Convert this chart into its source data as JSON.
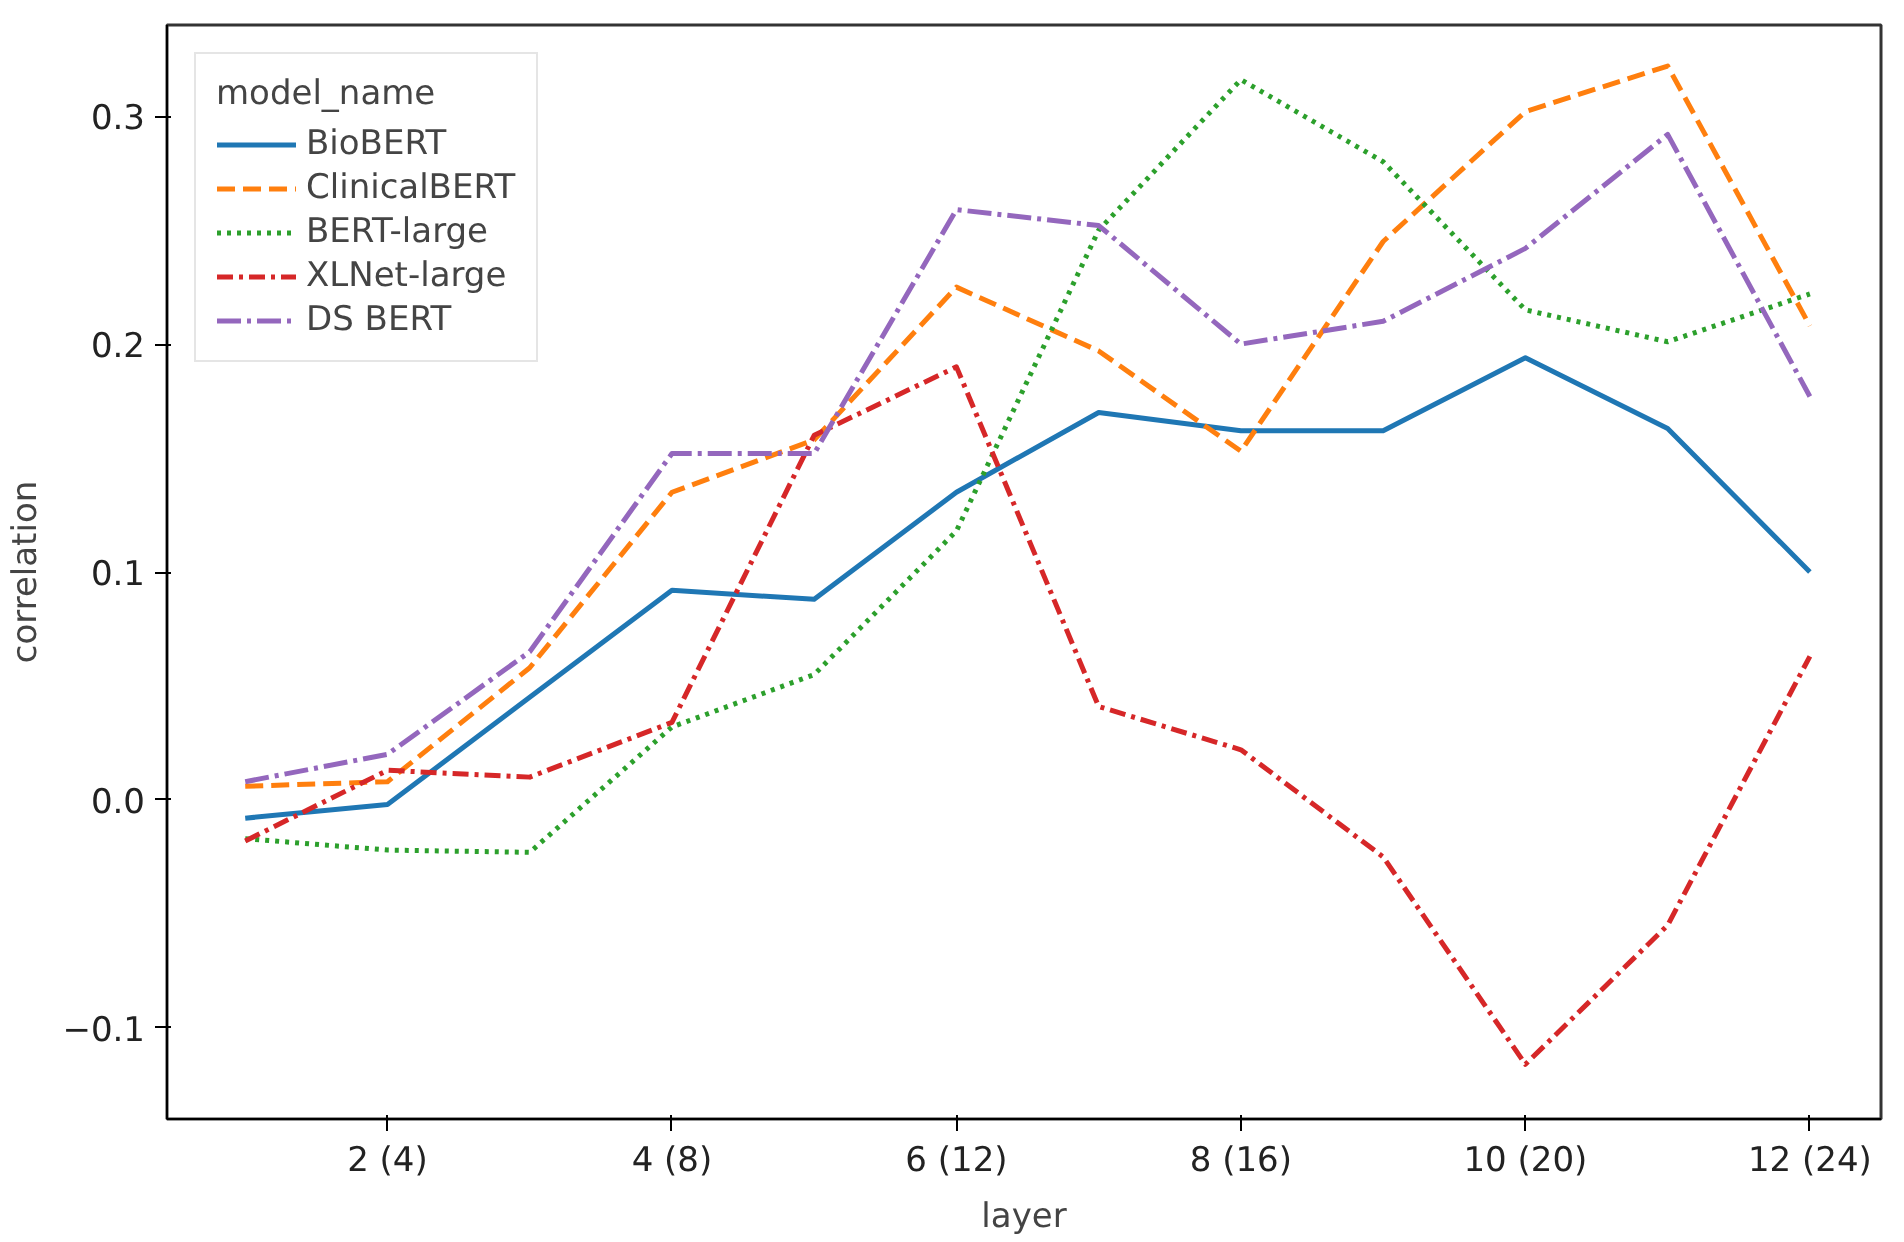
{
  "chart_data": {
    "type": "line",
    "xlabel": "layer",
    "ylabel": "correlation",
    "legend_title": "model_name",
    "legend": "top left",
    "grid": false,
    "categories": [
      null,
      "2 (4)",
      null,
      "4 (8)",
      null,
      "6 (12)",
      null,
      "8 (16)",
      null,
      "10 (20)",
      null,
      "12 (24)"
    ],
    "ylim": [
      -0.14,
      0.34
    ],
    "yticks": [
      {
        "value": -0.1,
        "label": "−0.1"
      },
      {
        "value": 0,
        "label": "0.0"
      },
      0.1,
      0.2,
      0.3
    ],
    "series": [
      {
        "name": "BioBERT",
        "color": "#1f77b4",
        "line_style": "solid",
        "values": [
          -0.008,
          -0.002,
          0.045,
          0.092,
          0.088,
          0.135,
          0.17,
          0.162,
          0.162,
          0.194,
          0.163,
          0.1
        ]
      },
      {
        "name": "ClinicalBERT",
        "color": "#ff7f0e",
        "line_style": "dashed",
        "values": [
          0.006,
          0.008,
          0.058,
          0.135,
          0.158,
          0.225,
          0.197,
          0.153,
          0.245,
          0.302,
          0.322,
          0.208
        ]
      },
      {
        "name": "BERT-large",
        "color": "#2ca02c",
        "line_style": "dotted",
        "values": [
          -0.017,
          -0.022,
          -0.023,
          0.032,
          0.055,
          0.118,
          0.25,
          0.316,
          0.28,
          0.215,
          0.201,
          0.222
        ]
      },
      {
        "name": "XLNet-large",
        "color": "#d62728",
        "line_style": "dashdot",
        "values": [
          -0.018,
          0.013,
          0.01,
          0.034,
          0.16,
          0.19,
          0.041,
          0.022,
          -0.025,
          -0.116,
          -0.055,
          0.063
        ]
      },
      {
        "name": "DS BERT",
        "color": "#9467bd",
        "line_style": "dashdotlong",
        "values": [
          0.008,
          0.02,
          0.065,
          0.152,
          0.152,
          0.259,
          0.252,
          0.2,
          0.21,
          0.242,
          0.292,
          0.177
        ]
      }
    ]
  }
}
